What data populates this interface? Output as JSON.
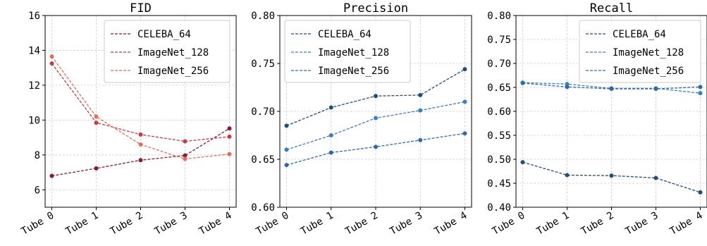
{
  "chart_data": [
    {
      "type": "line",
      "title": "FID",
      "categories": [
        "Tube 0",
        "Tube 1",
        "Tube 2",
        "Tube 3",
        "Tube 4"
      ],
      "ylim": [
        5,
        16
      ],
      "yticks": [
        6,
        8,
        10,
        12,
        14,
        16
      ],
      "ytick_labels": [
        "6",
        "8",
        "10",
        "12",
        "14",
        "16"
      ],
      "grid": true,
      "legend": "top-right",
      "series": [
        {
          "name": "CELEBA_64",
          "values": [
            6.8,
            7.23,
            7.7,
            7.97,
            9.52
          ],
          "color": "#8b1a2e"
        },
        {
          "name": "ImageNet_128",
          "values": [
            13.25,
            9.85,
            9.17,
            8.78,
            9.05
          ],
          "color": "#c43b45"
        },
        {
          "name": "ImageNet_256",
          "values": [
            13.65,
            10.2,
            8.6,
            7.77,
            8.05
          ],
          "color": "#e0705a"
        }
      ]
    },
    {
      "type": "line",
      "title": "Precision",
      "categories": [
        "Tube 0",
        "Tube 1",
        "Tube 2",
        "Tube 3",
        "Tube 4"
      ],
      "ylim": [
        0.6,
        0.8
      ],
      "yticks": [
        0.6,
        0.65,
        0.7,
        0.75,
        0.8
      ],
      "ytick_labels": [
        "0.60",
        "0.65",
        "0.70",
        "0.75",
        "0.80"
      ],
      "grid": true,
      "legend": "top-left",
      "series": [
        {
          "name": "CELEBA_64",
          "values": [
            0.685,
            0.704,
            0.716,
            0.717,
            0.744
          ],
          "color": "#1f4e79"
        },
        {
          "name": "ImageNet_128",
          "values": [
            0.66,
            0.675,
            0.693,
            0.701,
            0.71
          ],
          "color": "#3a7fc1"
        },
        {
          "name": "ImageNet_256",
          "values": [
            0.644,
            0.657,
            0.663,
            0.67,
            0.677
          ],
          "color": "#2e6aa8"
        }
      ]
    },
    {
      "type": "line",
      "title": "Recall",
      "categories": [
        "Tube 0",
        "Tube 1",
        "Tube 2",
        "Tube 3",
        "Tube 4"
      ],
      "ylim": [
        0.4,
        0.8
      ],
      "yticks": [
        0.4,
        0.45,
        0.5,
        0.55,
        0.6,
        0.65,
        0.7,
        0.75,
        0.8
      ],
      "ytick_labels": [
        "0.40",
        "0.45",
        "0.50",
        "0.55",
        "0.60",
        "0.65",
        "0.70",
        "0.75",
        "0.80"
      ],
      "grid": true,
      "legend": "top-right",
      "series": [
        {
          "name": "CELEBA_64",
          "values": [
            0.494,
            0.467,
            0.466,
            0.461,
            0.431
          ],
          "color": "#1f4e79"
        },
        {
          "name": "ImageNet_128",
          "values": [
            0.66,
            0.657,
            0.648,
            0.648,
            0.638
          ],
          "color": "#3a7fc1"
        },
        {
          "name": "ImageNet_256",
          "values": [
            0.659,
            0.651,
            0.647,
            0.647,
            0.651
          ],
          "color": "#2e6aa8"
        }
      ]
    }
  ]
}
